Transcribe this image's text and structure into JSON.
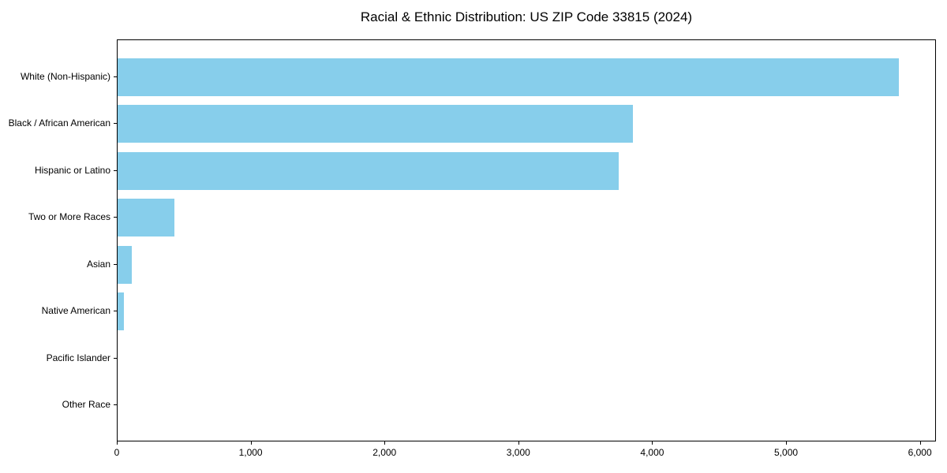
{
  "chart_data": {
    "type": "bar",
    "orientation": "horizontal",
    "title": "Racial & Ethnic Distribution: US ZIP Code 33815 (2024)",
    "categories": [
      "White (Non-Hispanic)",
      "Black / African American",
      "Hispanic or Latino",
      "Two or More Races",
      "Asian",
      "Native American",
      "Pacific Islander",
      "Other Race"
    ],
    "values": [
      5835,
      3850,
      3745,
      425,
      105,
      45,
      0,
      0
    ],
    "xlabel": "",
    "ylabel": "",
    "xlim": [
      0,
      6120
    ],
    "x_ticks": [
      0,
      1000,
      2000,
      3000,
      4000,
      5000,
      6000
    ],
    "x_tick_labels": [
      "0",
      "1,000",
      "2,000",
      "3,000",
      "4,000",
      "5,000",
      "6,000"
    ],
    "bar_color": "#87CEEB",
    "grid": false,
    "legend_position": "none"
  }
}
